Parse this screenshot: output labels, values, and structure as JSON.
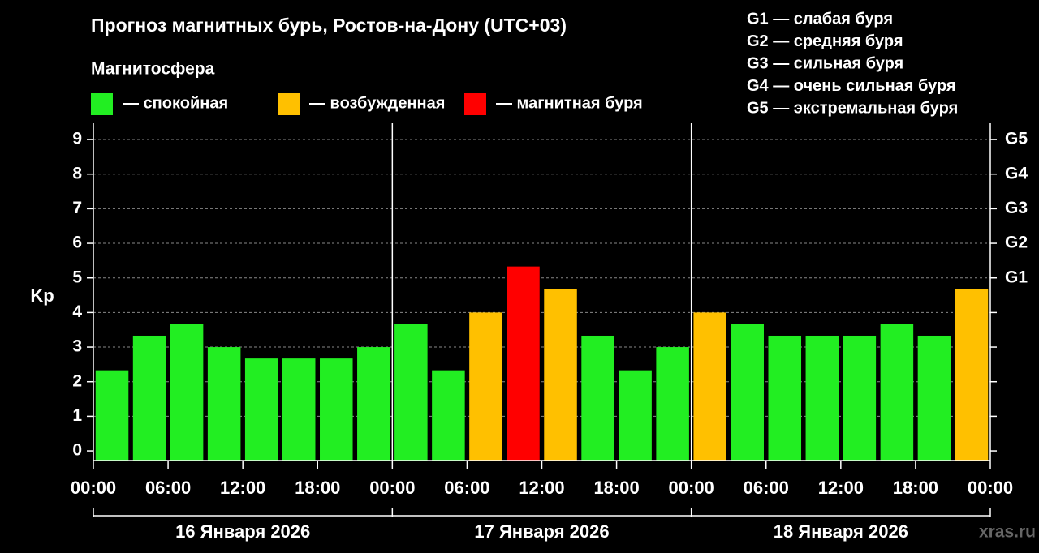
{
  "chart_data": {
    "type": "bar",
    "title": "Прогноз магнитных бурь, Ростов-на-Дону (UTC+03)",
    "legend_title": "Магнитосфера",
    "legend": [
      {
        "label": "— спокойная",
        "color": "#22ee22"
      },
      {
        "label": "— возбужденная",
        "color": "#ffc000"
      },
      {
        "label": "— магнитная буря",
        "color": "#ff0000"
      }
    ],
    "g_legend": [
      "G1 — слабая буря",
      "G2 — средняя буря",
      "G3 — сильная буря",
      "G4 — очень сильная буря",
      "G5 — экстремальная буря"
    ],
    "ylabel": "Kp",
    "x": [
      1.5,
      4.5,
      7.5,
      10.5,
      13.5,
      16.5,
      19.5,
      22.5,
      25.5,
      28.5,
      31.5,
      34.5,
      37.5,
      40.5,
      43.5,
      46.5,
      49.5,
      52.5,
      55.5,
      58.5,
      61.5,
      64.5,
      67.5,
      70.5
    ],
    "values": [
      2.33,
      3.33,
      3.67,
      3,
      2.67,
      2.67,
      2.67,
      3,
      3.67,
      2.33,
      4,
      5.33,
      4.67,
      3.33,
      2.33,
      3,
      4,
      3.67,
      3.33,
      3.33,
      3.33,
      3.67,
      3.33,
      4.67
    ],
    "colors": [
      "#22ee22",
      "#22ee22",
      "#22ee22",
      "#22ee22",
      "#22ee22",
      "#22ee22",
      "#22ee22",
      "#22ee22",
      "#22ee22",
      "#22ee22",
      "#ffc000",
      "#ff0000",
      "#ffc000",
      "#22ee22",
      "#22ee22",
      "#22ee22",
      "#ffc000",
      "#22ee22",
      "#22ee22",
      "#22ee22",
      "#22ee22",
      "#22ee22",
      "#22ee22",
      "#ffc000"
    ],
    "xlim": [
      0,
      72
    ],
    "xticks": [
      {
        "value": 0,
        "label": "00:00"
      },
      {
        "value": 6,
        "label": "06:00"
      },
      {
        "value": 12,
        "label": "12:00"
      },
      {
        "value": 18,
        "label": "18:00"
      },
      {
        "value": 24,
        "label": "00:00"
      },
      {
        "value": 30,
        "label": "06:00"
      },
      {
        "value": 36,
        "label": "12:00"
      },
      {
        "value": 42,
        "label": "18:00"
      },
      {
        "value": 48,
        "label": "00:00"
      },
      {
        "value": 54,
        "label": "06:00"
      },
      {
        "value": 60,
        "label": "12:00"
      },
      {
        "value": 66,
        "label": "18:00"
      },
      {
        "value": 72,
        "label": "00:00"
      }
    ],
    "ylim": [
      -0.28,
      9.47
    ],
    "yticks": [
      0,
      1,
      2,
      3,
      4,
      5,
      6,
      7,
      8,
      9
    ],
    "y2lim": [
      -0.28,
      9.47
    ],
    "y2ticks": [
      {
        "value": 5,
        "label": "G1"
      },
      {
        "value": 6,
        "label": "G2"
      },
      {
        "value": 7,
        "label": "G3"
      },
      {
        "value": 8,
        "label": "G4"
      },
      {
        "value": 9,
        "label": "G5"
      }
    ],
    "days": [
      "16 Января 2026",
      "17 Января 2026",
      "18 Января 2026"
    ],
    "grid": true,
    "watermark": "xras.ru"
  }
}
